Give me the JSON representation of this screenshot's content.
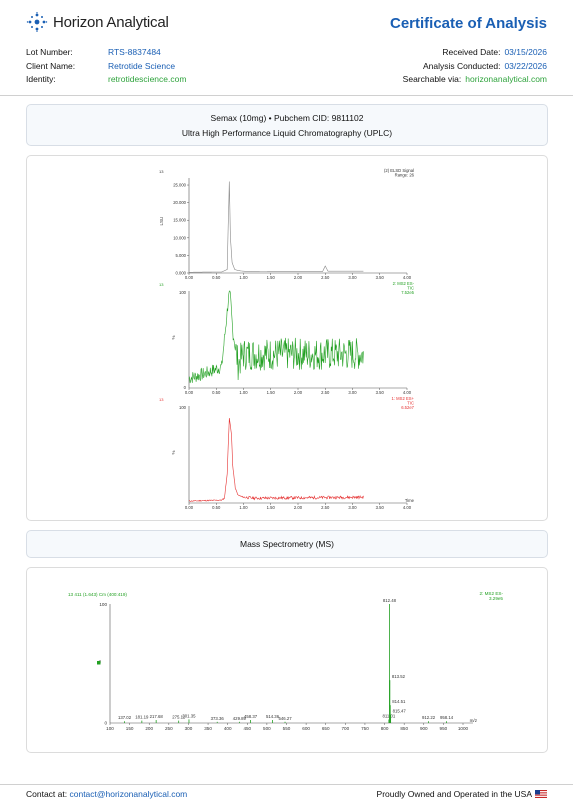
{
  "header": {
    "brand": "Horizon Analytical",
    "doc_title": "Certificate of Analysis",
    "lot_label": "Lot Number:",
    "lot_value": "RTS-8837484",
    "client_label": "Client Name:",
    "client_value": "Retrotide Science",
    "identity_label": "Identity:",
    "identity_value": "retrotidescience.com",
    "received_label": "Received Date:",
    "received_value": "03/15/2026",
    "conducted_label": "Analysis Conducted:",
    "conducted_value": "03/22/2026",
    "searchable_label": "Searchable via:",
    "searchable_value": "horizonanalytical.com"
  },
  "sample": {
    "line1": "Semax (10mg) • Pubchem CID: 9811102",
    "line2": "Ultra High Performance Liquid Chromatography (UPLC)"
  },
  "ms_section_title": "Mass Spectrometry (MS)",
  "footer": {
    "contact_prefix": "Contact at:",
    "contact_email": "contact@horizonanalytical.com",
    "made_in": "Proudly Owned and Operated in the USA"
  },
  "colors": {
    "brand_blue": "#1a5fb4",
    "accent_green": "#2ea33c",
    "ms_green": "#22a022",
    "es_red": "#e53030"
  },
  "chart_data": [
    {
      "type": "line",
      "name_label": "13",
      "trace_label_1": "(2) ELSD Signal",
      "trace_label_2": "Range: 26",
      "ylabel": "LSU",
      "yticks": [
        "25.000",
        "20.000",
        "15.000",
        "10.000",
        "5.000",
        "0.000"
      ],
      "xticks": [
        "0.00",
        "0.50",
        "1.00",
        "1.50",
        "2.00",
        "2.50",
        "3.00",
        "3.50",
        "4.00"
      ],
      "xlim": [
        0,
        4
      ],
      "ylim": [
        0,
        27
      ],
      "series": [
        {
          "x": [
            0,
            0.6,
            0.7,
            0.74,
            0.76,
            0.79,
            0.84,
            0.9,
            1.0,
            1.5,
            2.0,
            2.45,
            2.5,
            2.55,
            3.0,
            3.2
          ],
          "y": [
            0.2,
            0.3,
            1,
            26,
            10,
            3,
            1,
            0.7,
            0.5,
            0.4,
            0.4,
            0.4,
            2,
            0.5,
            0.5,
            0.5
          ]
        }
      ]
    },
    {
      "type": "line",
      "name_label": "13",
      "trace_label_1": "2: MS2 ES-",
      "trace_label_2": "TIC",
      "trace_label_3": "7.52e5",
      "ylabel": "%",
      "ytop": "100",
      "ybottom": "0",
      "xticks": [
        "0.00",
        "0.50",
        "1.00",
        "1.50",
        "2.00",
        "2.50",
        "3.00",
        "3.50",
        "4.00"
      ],
      "xlim": [
        0,
        4
      ],
      "ylim": [
        0,
        100
      ],
      "series": [
        {
          "x": [
            0,
            0.3,
            0.6,
            0.72,
            0.75,
            0.8,
            0.9,
            1.0,
            3.2
          ],
          "y": [
            10,
            15,
            22,
            90,
            100,
            60,
            25,
            35,
            35
          ]
        }
      ]
    },
    {
      "type": "line",
      "name_label": "13",
      "trace_label_1": "1: MS2 ES+",
      "trace_label_2": "TIC",
      "trace_label_3": "6.52e7",
      "ylabel": "%",
      "ytop": "100",
      "xticks": [
        "0.00",
        "0.50",
        "1.00",
        "1.50",
        "2.00",
        "2.50",
        "3.00",
        "3.50",
        "4.00"
      ],
      "xaxis_label": "Time",
      "xlim": [
        0,
        4
      ],
      "ylim": [
        0,
        100
      ],
      "series": [
        {
          "x": [
            0,
            0.6,
            0.65,
            0.7,
            0.74,
            0.78,
            0.8,
            0.85,
            0.9,
            1.0,
            1.2,
            3.2
          ],
          "y": [
            2,
            3,
            5,
            30,
            88,
            70,
            40,
            15,
            8,
            6,
            5,
            6
          ]
        }
      ]
    },
    {
      "type": "bar",
      "header_left": "13 411 (1.643) Cm (400:419)",
      "trace_label_1": "2: MS2 ES-",
      "trace_label_2": "3.29e5",
      "ytop": "100",
      "ybottom": "0",
      "ylabel": "%",
      "xaxis_label": "m/z",
      "xticks": [
        "100",
        "150",
        "200",
        "250",
        "300",
        "350",
        "400",
        "450",
        "500",
        "550",
        "600",
        "650",
        "700",
        "750",
        "800",
        "850",
        "900",
        "950",
        "1000"
      ],
      "xlim": [
        100,
        1000
      ],
      "ylim": [
        0,
        100
      ],
      "peaks": [
        {
          "mz": 137.02,
          "i": 1.5,
          "label": "137.02"
        },
        {
          "mz": 181.19,
          "i": 2,
          "label": "181.19"
        },
        {
          "mz": 217.68,
          "i": 2.5,
          "label": "217.68"
        },
        {
          "mz": 275.11,
          "i": 2,
          "label": "275.11"
        },
        {
          "mz": 301.35,
          "i": 3,
          "label": "301.35"
        },
        {
          "mz": 373.36,
          "i": 1,
          "label": "373.36"
        },
        {
          "mz": 429.89,
          "i": 1,
          "label": "429.89"
        },
        {
          "mz": 458.37,
          "i": 2.5,
          "label": "458.37"
        },
        {
          "mz": 514.36,
          "i": 2.5,
          "label": "514.36"
        },
        {
          "mz": 546.27,
          "i": 1,
          "label": "546.27"
        },
        {
          "mz": 811.01,
          "i": 3,
          "label": "811.01"
        },
        {
          "mz": 812.48,
          "i": 100,
          "label": "812.48"
        },
        {
          "mz": 813.52,
          "i": 36,
          "label": "813.52"
        },
        {
          "mz": 814.51,
          "i": 15,
          "label": "814.51"
        },
        {
          "mz": 815.47,
          "i": 7,
          "label": "815.47"
        },
        {
          "mz": 912.22,
          "i": 1.5,
          "label": "912.22"
        },
        {
          "mz": 958.14,
          "i": 1.5,
          "label": "958.14"
        }
      ]
    }
  ]
}
